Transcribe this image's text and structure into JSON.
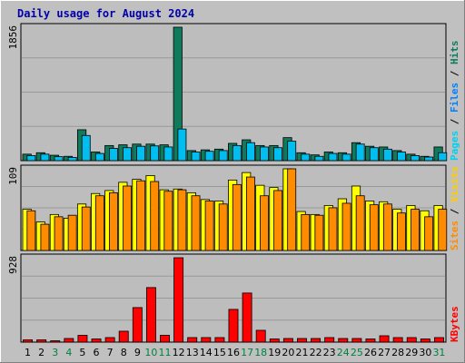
{
  "title": "Daily usage for August 2024",
  "colors": {
    "background": "#c0c0c0",
    "plot_background": "#bdbdbd",
    "gridline": "#999999",
    "title": "#0000aa",
    "hits": "#107a5c",
    "files": "#00bff0",
    "pages": "#00d0f0",
    "visits": "#ffff00",
    "sites": "#ff8c00",
    "kbytes": "#ff0000",
    "weekend_label": "#008040",
    "weekday_label": "#000000"
  },
  "x_labels": [
    "1",
    "2",
    "3",
    "4",
    "5",
    "6",
    "7",
    "8",
    "9",
    "10",
    "11",
    "12",
    "13",
    "14",
    "15",
    "16",
    "17",
    "18",
    "19",
    "20",
    "21",
    "22",
    "23",
    "24",
    "25",
    "26",
    "27",
    "28",
    "29",
    "30",
    "31"
  ],
  "weekend_days": [
    3,
    4,
    10,
    11,
    17,
    18,
    24,
    25,
    31
  ],
  "chart_data": [
    {
      "type": "bar",
      "panel": "hits-files-pages",
      "categories": [
        "1",
        "2",
        "3",
        "4",
        "5",
        "6",
        "7",
        "8",
        "9",
        "10",
        "11",
        "12",
        "13",
        "14",
        "15",
        "16",
        "17",
        "18",
        "19",
        "20",
        "21",
        "22",
        "23",
        "24",
        "25",
        "26",
        "27",
        "28",
        "29",
        "30",
        "31"
      ],
      "ymax_label": "1856",
      "legend": [
        {
          "text": "Pages",
          "color": "#00d0f0"
        },
        {
          "text": "Files",
          "color": "#0080ff"
        },
        {
          "text": "Hits",
          "color": "#107a5c"
        }
      ],
      "series": [
        {
          "name": "Hits",
          "color": "#107a5c",
          "values": [
            90,
            110,
            75,
            60,
            430,
            120,
            210,
            220,
            230,
            230,
            220,
            1856,
            140,
            150,
            160,
            240,
            290,
            210,
            210,
            320,
            110,
            80,
            120,
            110,
            250,
            200,
            190,
            140,
            90,
            60,
            190
          ]
        },
        {
          "name": "Files",
          "color": "#00bff0",
          "values": [
            70,
            90,
            55,
            45,
            350,
            100,
            170,
            180,
            200,
            205,
            190,
            440,
            120,
            130,
            140,
            210,
            250,
            190,
            180,
            270,
            90,
            60,
            100,
            90,
            230,
            180,
            160,
            120,
            70,
            50,
            110
          ]
        }
      ]
    },
    {
      "type": "bar",
      "panel": "visits-sites",
      "categories": [
        "1",
        "2",
        "3",
        "4",
        "5",
        "6",
        "7",
        "8",
        "9",
        "10",
        "11",
        "12",
        "13",
        "14",
        "15",
        "16",
        "17",
        "18",
        "19",
        "20",
        "21",
        "22",
        "23",
        "24",
        "25",
        "26",
        "27",
        "28",
        "29",
        "30",
        "31"
      ],
      "ymax_label": "109",
      "legend": [
        {
          "text": "Sites",
          "color": "#ff8c00"
        },
        {
          "text": "Visits",
          "color": "#ffcc00"
        }
      ],
      "series": [
        {
          "name": "Visits",
          "color": "#ffff00",
          "values": [
            55,
            38,
            48,
            43,
            62,
            76,
            80,
            91,
            95,
            100,
            81,
            82,
            77,
            68,
            66,
            94,
            104,
            87,
            84,
            109,
            52,
            48,
            60,
            69,
            86,
            66,
            65,
            55,
            60,
            53,
            60
          ]
        },
        {
          "name": "Sites",
          "color": "#ff8c00",
          "values": [
            53,
            35,
            45,
            47,
            58,
            73,
            77,
            86,
            93,
            92,
            79,
            81,
            73,
            66,
            62,
            88,
            98,
            73,
            80,
            109,
            48,
            47,
            57,
            63,
            73,
            61,
            62,
            50,
            55,
            45,
            55
          ]
        }
      ]
    },
    {
      "type": "bar",
      "panel": "kbytes",
      "categories": [
        "1",
        "2",
        "3",
        "4",
        "5",
        "6",
        "7",
        "8",
        "9",
        "10",
        "11",
        "12",
        "13",
        "14",
        "15",
        "16",
        "17",
        "18",
        "19",
        "20",
        "21",
        "22",
        "23",
        "24",
        "25",
        "26",
        "27",
        "28",
        "29",
        "30",
        "31"
      ],
      "ymax_label": "928",
      "legend": [
        {
          "text": "KBytes",
          "color": "#ff0000"
        }
      ],
      "series": [
        {
          "name": "KBytes",
          "color": "#ff0000",
          "values": [
            25,
            25,
            15,
            40,
            75,
            35,
            50,
            120,
            380,
            600,
            75,
            928,
            50,
            50,
            50,
            360,
            540,
            130,
            35,
            40,
            40,
            40,
            50,
            40,
            40,
            35,
            70,
            50,
            50,
            35,
            50
          ]
        }
      ]
    }
  ]
}
